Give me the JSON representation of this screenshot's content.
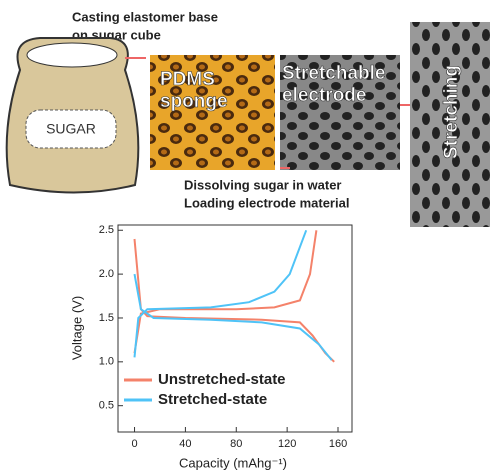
{
  "diagram": {
    "caption": [
      "Casting elastomer base",
      "on sugar cube"
    ],
    "bag_label": "SUGAR",
    "sponge_label": [
      "PDMS",
      "sponge"
    ],
    "electrode_label": [
      "Stretchable",
      "electrode"
    ],
    "stretch_label": "Stretching",
    "process": [
      "Dissolving sugar in water",
      "Loading electrode material"
    ]
  },
  "chart_data": {
    "type": "line",
    "xlabel": "Capacity (mAhg⁻¹)",
    "ylabel": "Voltage (V)",
    "xlim": [
      -13,
      171
    ],
    "ylim": [
      0.2,
      2.56
    ],
    "xticks": [
      0,
      40,
      80,
      120,
      160
    ],
    "yticks": [
      {
        "value": 0.5,
        "label": "0.5"
      },
      {
        "value": 1,
        "label": "1.0"
      },
      {
        "value": 1.5,
        "label": "1.5"
      },
      {
        "value": 2,
        "label": "2.0"
      },
      {
        "value": 2.5,
        "label": "2.5"
      }
    ],
    "legend": "lower left",
    "grid": false,
    "series": [
      {
        "name": "Unstretched-state",
        "color": "#f4826a",
        "x": [
          0,
          5,
          10,
          40,
          100,
          130,
          140,
          150,
          157,
          null,
          0,
          5,
          20,
          80,
          110,
          130,
          138,
          143
        ],
        "values": [
          2.4,
          1.6,
          1.52,
          1.5,
          1.48,
          1.45,
          1.3,
          1.1,
          1.0,
          null,
          1.1,
          1.55,
          1.6,
          1.6,
          1.62,
          1.7,
          2.0,
          2.5
        ]
      },
      {
        "name": "Stretched-state",
        "color": "#4fc3f7",
        "x": [
          0,
          5,
          15,
          60,
          100,
          130,
          145,
          155,
          null,
          0,
          3,
          10,
          60,
          90,
          110,
          122,
          135
        ],
        "values": [
          2.0,
          1.6,
          1.5,
          1.48,
          1.45,
          1.38,
          1.2,
          1.02,
          null,
          1.05,
          1.5,
          1.6,
          1.62,
          1.68,
          1.8,
          2.0,
          2.5
        ]
      }
    ]
  }
}
